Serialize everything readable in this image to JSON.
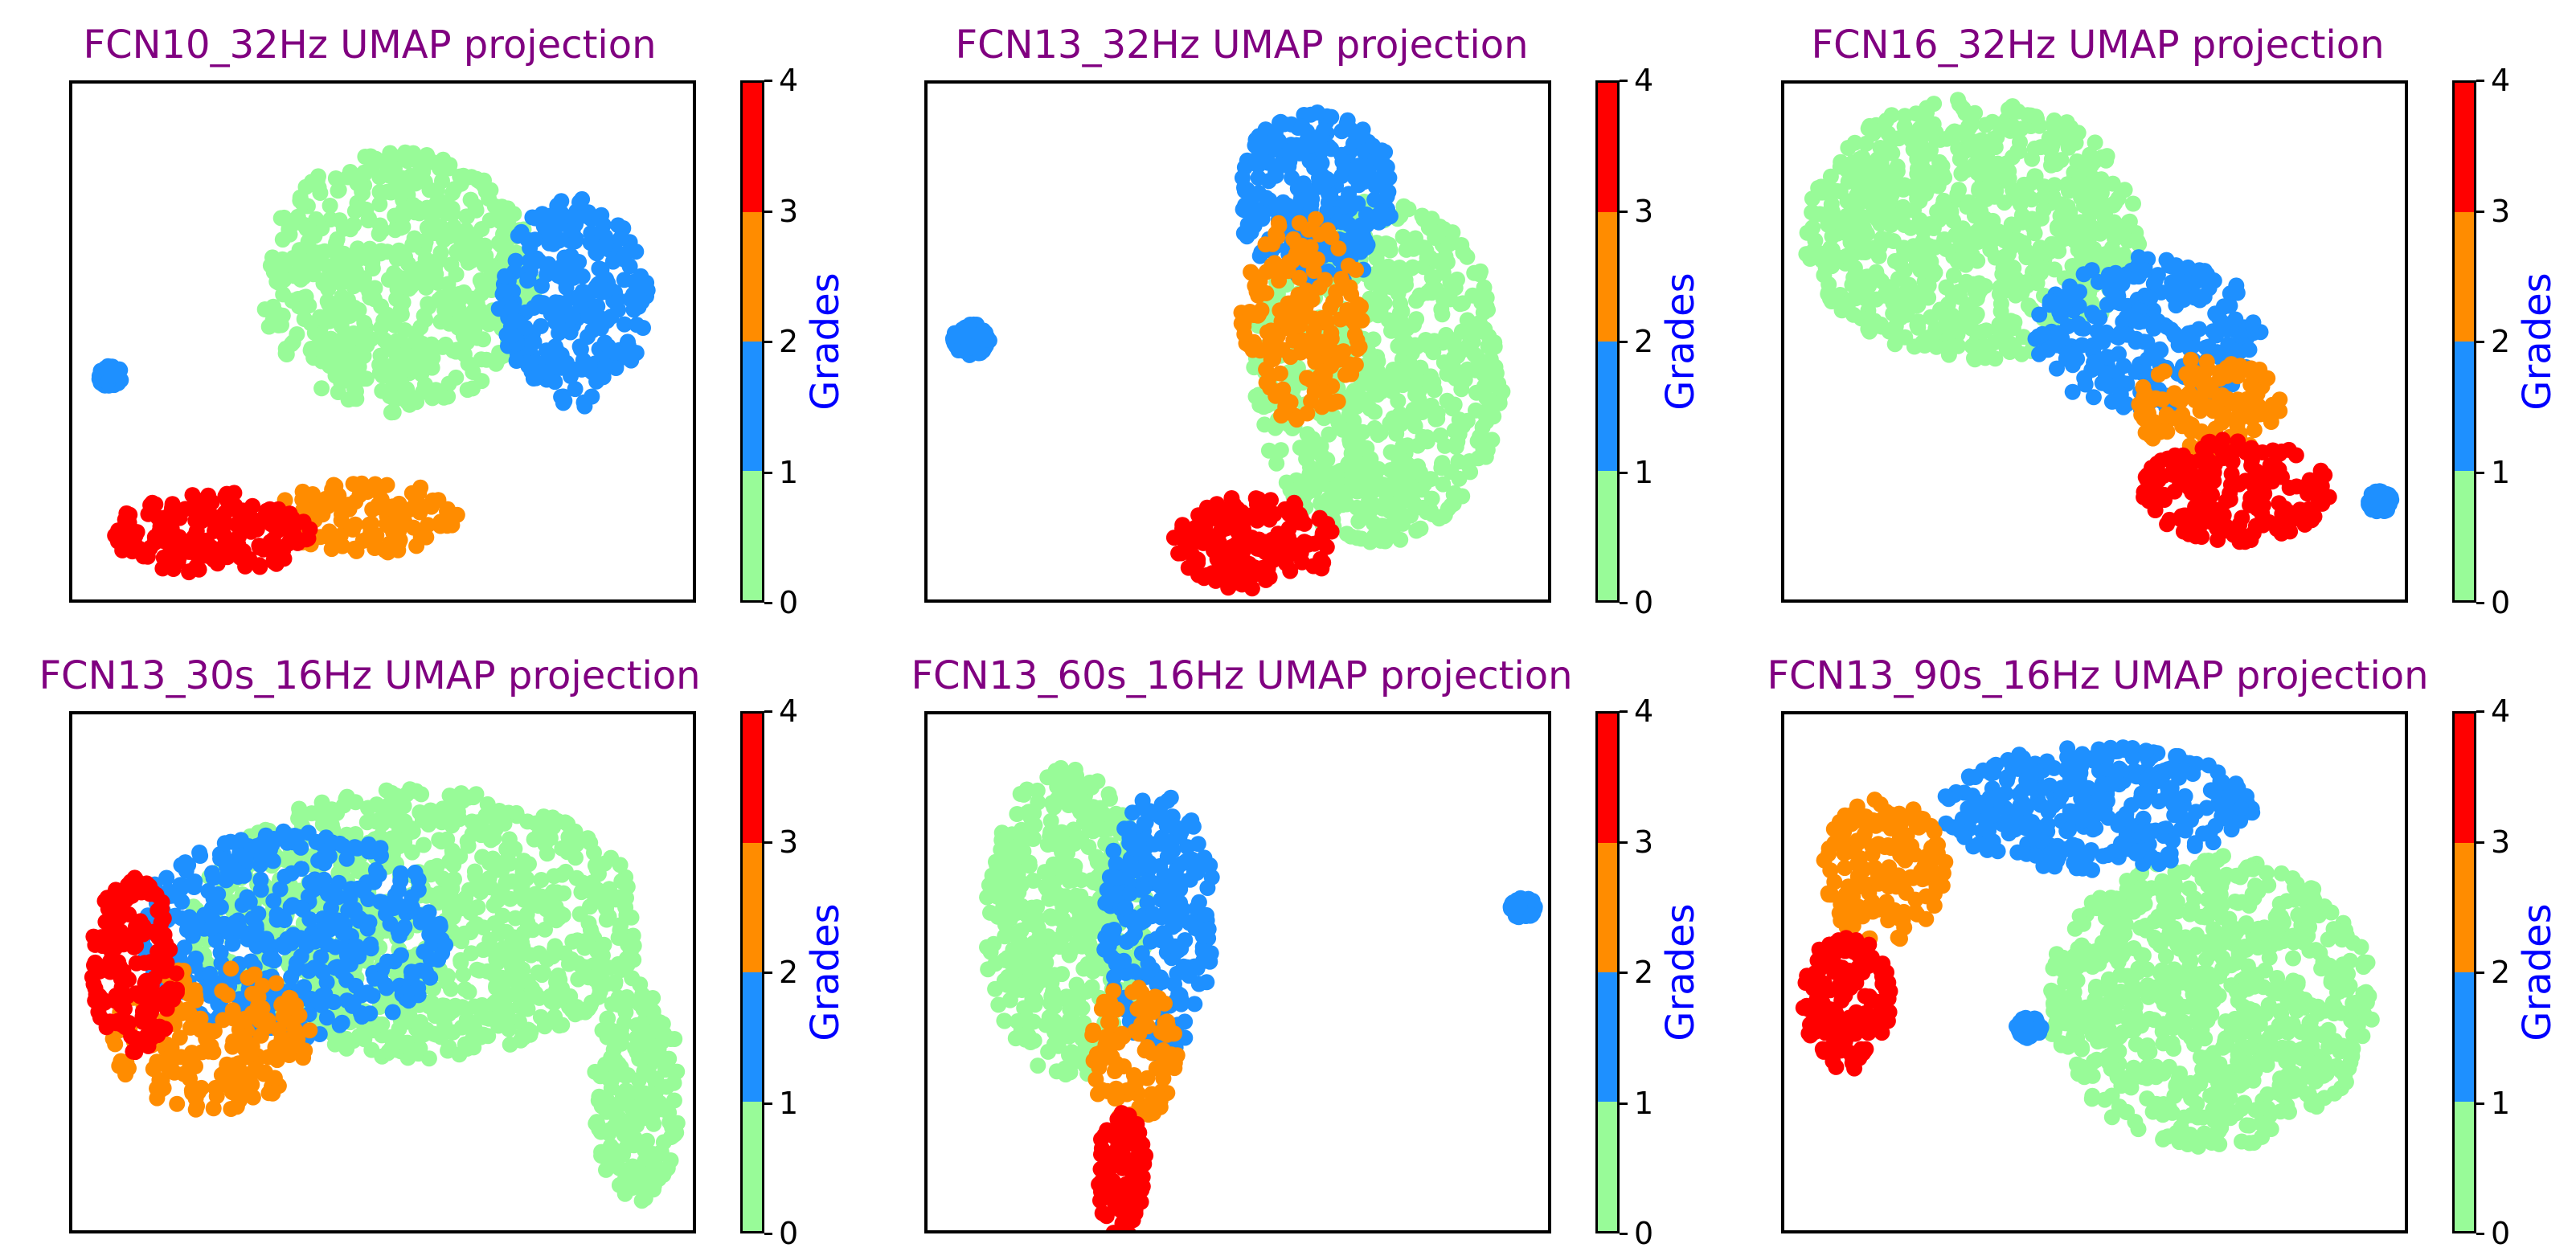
{
  "figure": {
    "colorbar_label": "Grades"
  },
  "colors": {
    "grade_0_1": "#98fb98",
    "grade_1_2": "#1e90ff",
    "grade_2_3": "#ff8c00",
    "grade_3_4": "#ff0000",
    "title": "#800080",
    "colorbar_label": "#0000ff"
  },
  "chart_data": [
    {
      "type": "scatter",
      "title": "FCN10_32Hz UMAP projection",
      "xlabel": "",
      "ylabel": "",
      "color_scale": {
        "label": "Grades",
        "ticks": [
          "0",
          "1",
          "2",
          "3",
          "4"
        ],
        "range": [
          0,
          4
        ]
      },
      "clusters": [
        {
          "grade": "0-1",
          "x": 0.52,
          "y": 0.62,
          "rx": 0.22,
          "ry": 0.25,
          "density": 0.9
        },
        {
          "grade": "1-2",
          "x": 0.8,
          "y": 0.58,
          "rx": 0.12,
          "ry": 0.2,
          "density": 0.8
        },
        {
          "grade": "2-3",
          "x": 0.47,
          "y": 0.17,
          "rx": 0.15,
          "ry": 0.07,
          "density": 0.7
        },
        {
          "grade": "3-4",
          "x": 0.22,
          "y": 0.14,
          "rx": 0.16,
          "ry": 0.08,
          "density": 0.85
        },
        {
          "grade": "1-2",
          "x": 0.06,
          "y": 0.44,
          "rx": 0.02,
          "ry": 0.02,
          "density": 1.0
        }
      ]
    },
    {
      "type": "scatter",
      "title": "FCN13_32Hz UMAP projection",
      "xlabel": "",
      "ylabel": "",
      "color_scale": {
        "label": "Grades",
        "ticks": [
          "0",
          "1",
          "2",
          "3",
          "4"
        ],
        "range": [
          0,
          4
        ]
      },
      "clusters": [
        {
          "grade": "0-1",
          "x": 0.72,
          "y": 0.45,
          "rx": 0.2,
          "ry": 0.33,
          "density": 0.9
        },
        {
          "grade": "1-2",
          "x": 0.62,
          "y": 0.78,
          "rx": 0.13,
          "ry": 0.17,
          "density": 0.85
        },
        {
          "grade": "2-3",
          "x": 0.6,
          "y": 0.55,
          "rx": 0.1,
          "ry": 0.2,
          "density": 0.6
        },
        {
          "grade": "3-4",
          "x": 0.52,
          "y": 0.12,
          "rx": 0.13,
          "ry": 0.09,
          "density": 0.8
        },
        {
          "grade": "1-2",
          "x": 0.07,
          "y": 0.51,
          "rx": 0.03,
          "ry": 0.03,
          "density": 1.0
        }
      ]
    },
    {
      "type": "scatter",
      "title": "FCN16_32Hz UMAP projection",
      "xlabel": "",
      "ylabel": "",
      "color_scale": {
        "label": "Grades",
        "ticks": [
          "0",
          "1",
          "2",
          "3",
          "4"
        ],
        "range": [
          0,
          4
        ]
      },
      "clusters": [
        {
          "grade": "0-1",
          "x": 0.3,
          "y": 0.72,
          "rx": 0.27,
          "ry": 0.25,
          "density": 0.95
        },
        {
          "grade": "1-2",
          "x": 0.58,
          "y": 0.52,
          "rx": 0.18,
          "ry": 0.15,
          "density": 0.75
        },
        {
          "grade": "2-3",
          "x": 0.68,
          "y": 0.38,
          "rx": 0.12,
          "ry": 0.1,
          "density": 0.6
        },
        {
          "grade": "3-4",
          "x": 0.72,
          "y": 0.22,
          "rx": 0.15,
          "ry": 0.1,
          "density": 0.8
        },
        {
          "grade": "1-2",
          "x": 0.95,
          "y": 0.2,
          "rx": 0.02,
          "ry": 0.02,
          "density": 1.0
        }
      ]
    },
    {
      "type": "scatter",
      "title": "FCN13_30s_16Hz UMAP projection",
      "xlabel": "",
      "ylabel": "",
      "color_scale": {
        "label": "Grades",
        "ticks": [
          "0",
          "1",
          "2",
          "3",
          "4"
        ],
        "range": [
          0,
          4
        ]
      },
      "clusters": [
        {
          "grade": "0-1",
          "x": 0.55,
          "y": 0.6,
          "rx": 0.36,
          "ry": 0.26,
          "density": 0.9
        },
        {
          "grade": "1-2",
          "x": 0.35,
          "y": 0.58,
          "rx": 0.25,
          "ry": 0.2,
          "density": 0.7
        },
        {
          "grade": "2-3",
          "x": 0.22,
          "y": 0.38,
          "rx": 0.16,
          "ry": 0.14,
          "density": 0.6
        },
        {
          "grade": "3-4",
          "x": 0.1,
          "y": 0.52,
          "rx": 0.07,
          "ry": 0.17,
          "density": 0.85
        },
        {
          "grade": "0-1",
          "x": 0.9,
          "y": 0.28,
          "rx": 0.07,
          "ry": 0.22,
          "density": 0.9
        }
      ]
    },
    {
      "type": "scatter",
      "title": "FCN13_60s_16Hz UMAP projection",
      "xlabel": "",
      "ylabel": "",
      "color_scale": {
        "label": "Grades",
        "ticks": [
          "0",
          "1",
          "2",
          "3",
          "4"
        ],
        "range": [
          0,
          4
        ]
      },
      "clusters": [
        {
          "grade": "0-1",
          "x": 0.22,
          "y": 0.6,
          "rx": 0.13,
          "ry": 0.3,
          "density": 0.95
        },
        {
          "grade": "1-2",
          "x": 0.37,
          "y": 0.6,
          "rx": 0.09,
          "ry": 0.25,
          "density": 0.8
        },
        {
          "grade": "2-3",
          "x": 0.33,
          "y": 0.35,
          "rx": 0.07,
          "ry": 0.14,
          "density": 0.6
        },
        {
          "grade": "3-4",
          "x": 0.31,
          "y": 0.12,
          "rx": 0.04,
          "ry": 0.12,
          "density": 0.85
        },
        {
          "grade": "1-2",
          "x": 0.95,
          "y": 0.63,
          "rx": 0.02,
          "ry": 0.02,
          "density": 1.0
        }
      ]
    },
    {
      "type": "scatter",
      "title": "FCN13_90s_16Hz UMAP projection",
      "xlabel": "",
      "ylabel": "",
      "color_scale": {
        "label": "Grades",
        "ticks": [
          "0",
          "1",
          "2",
          "3",
          "4"
        ],
        "range": [
          0,
          4
        ]
      },
      "clusters": [
        {
          "grade": "0-1",
          "x": 0.68,
          "y": 0.45,
          "rx": 0.26,
          "ry": 0.28,
          "density": 0.95
        },
        {
          "grade": "1-2",
          "x": 0.5,
          "y": 0.82,
          "rx": 0.25,
          "ry": 0.12,
          "density": 0.85
        },
        {
          "grade": "2-3",
          "x": 0.16,
          "y": 0.7,
          "rx": 0.1,
          "ry": 0.14,
          "density": 0.7
        },
        {
          "grade": "3-4",
          "x": 0.1,
          "y": 0.45,
          "rx": 0.07,
          "ry": 0.13,
          "density": 0.85
        },
        {
          "grade": "1-2",
          "x": 0.39,
          "y": 0.4,
          "rx": 0.02,
          "ry": 0.02,
          "density": 1.0
        }
      ]
    }
  ]
}
